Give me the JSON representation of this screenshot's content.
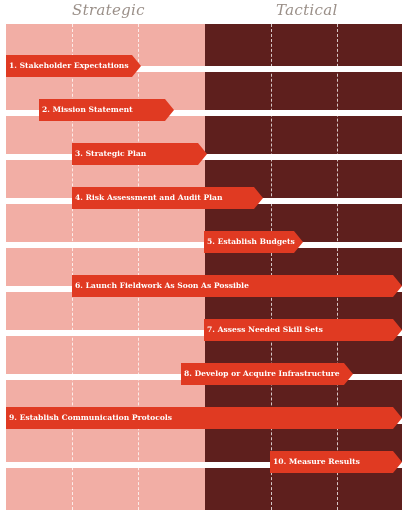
{
  "headers": {
    "strategic": "Strategic",
    "tactical": "Tactical"
  },
  "colors": {
    "strategic_bg": "#f2aea5",
    "tactical_bg": "#5e1f1d",
    "arrow": "#e03a22",
    "text": "#ffffff",
    "header": "#9a8f88"
  },
  "tasks": [
    {
      "label": "1. Stakeholder Expectations",
      "start_col": 0,
      "end_col": 2.05
    },
    {
      "label": "2. Mission Statement",
      "start_col": 0.5,
      "end_col": 2.55
    },
    {
      "label": "3. Strategic Plan",
      "start_col": 1.0,
      "end_col": 3.05
    },
    {
      "label": "4. Risk Assessment and Audit Plan",
      "start_col": 1.0,
      "end_col": 3.9
    },
    {
      "label": "5. Establish Budgets",
      "start_col": 3.0,
      "end_col": 4.5
    },
    {
      "label": "6. Launch Fieldwork As Soon As Possible",
      "start_col": 1.0,
      "end_col": 6.0
    },
    {
      "label": "7. Assess Needed Skill Sets",
      "start_col": 3.0,
      "end_col": 6.0
    },
    {
      "label": "8. Develop or Acquire Infrastructure",
      "start_col": 2.65,
      "end_col": 5.25
    },
    {
      "label": "9. Establish Communication Protocols",
      "start_col": 0,
      "end_col": 6.0
    },
    {
      "label": "10. Measure Results",
      "start_col": 4.0,
      "end_col": 6.0
    }
  ]
}
